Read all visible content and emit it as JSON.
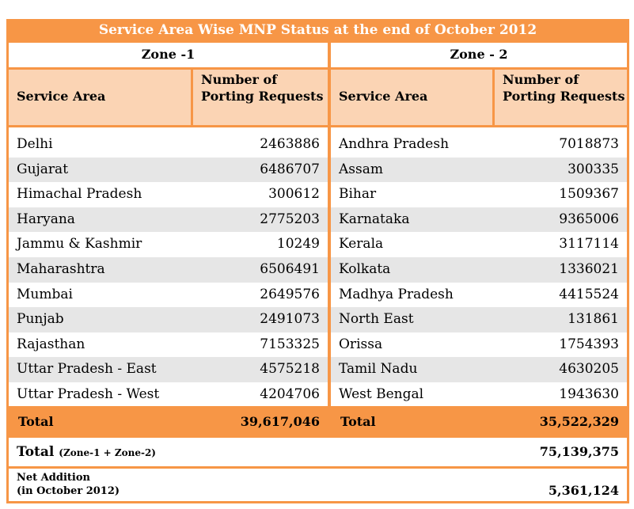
{
  "title": "Service Area Wise MNP Status at the end of October 2012",
  "zones": [
    {
      "name": "Zone -1",
      "col_area": "Service Area",
      "col_num": "Number of Porting Requests",
      "rows": [
        {
          "area": "Delhi",
          "value": "2463886"
        },
        {
          "area": "Gujarat",
          "value": "6486707"
        },
        {
          "area": "Himachal Pradesh",
          "value": "300612"
        },
        {
          "area": "Haryana",
          "value": "2775203"
        },
        {
          "area": "Jammu & Kashmir",
          "value": "10249"
        },
        {
          "area": "Maharashtra",
          "value": "6506491"
        },
        {
          "area": "Mumbai",
          "value": "2649576"
        },
        {
          "area": "Punjab",
          "value": "2491073"
        },
        {
          "area": "Rajasthan",
          "value": "7153325"
        },
        {
          "area": "Uttar Pradesh - East",
          "value": "4575218"
        },
        {
          "area": "Uttar Pradesh - West",
          "value": "4204706"
        }
      ],
      "total_label": "Total",
      "total_value": "39,617,046"
    },
    {
      "name": "Zone - 2",
      "col_area": "Service Area",
      "col_num": "Number of Porting Requests",
      "rows": [
        {
          "area": "Andhra Pradesh",
          "value": "7018873"
        },
        {
          "area": "Assam",
          "value": "300335"
        },
        {
          "area": "Bihar",
          "value": "1509367"
        },
        {
          "area": "Karnataka",
          "value": "9365006"
        },
        {
          "area": "Kerala",
          "value": "3117114"
        },
        {
          "area": "Kolkata",
          "value": "1336021"
        },
        {
          "area": "Madhya Pradesh",
          "value": "4415524"
        },
        {
          "area": "North East",
          "value": "131861"
        },
        {
          "area": "Orissa",
          "value": "1754393"
        },
        {
          "area": "Tamil Nadu",
          "value": "4630205"
        },
        {
          "area": "West Bengal",
          "value": "1943630"
        }
      ],
      "total_label": "Total",
      "total_value": "35,522,329"
    }
  ],
  "grand_total": {
    "label": "Total",
    "sub": "(Zone-1 + Zone-2)",
    "value": "75,139,375"
  },
  "net_addition": {
    "label_line1": "Net Addition",
    "label_line2": "(in October 2012)",
    "value": "5,361,124"
  },
  "colors": {
    "header_orange": "#f79646",
    "header_light": "#fbd4b4",
    "row_alt": "#e6e6e6"
  }
}
